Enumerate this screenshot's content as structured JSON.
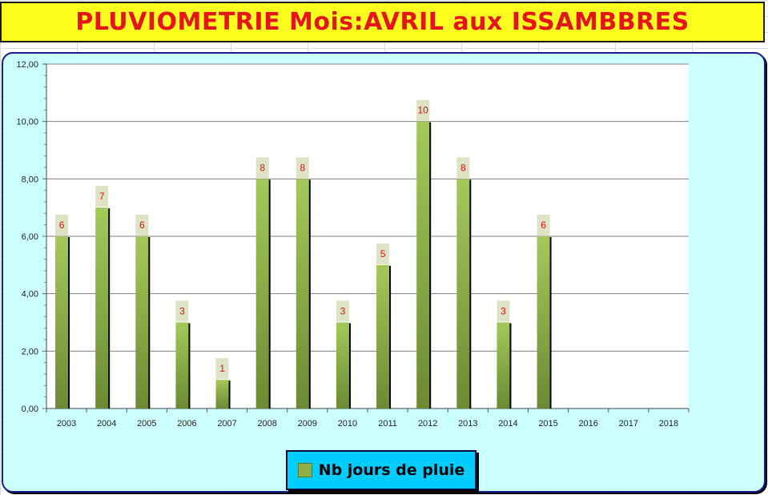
{
  "title": "PLUVIOMETRIE Mois:AVRIL aux ISSAMBBRES",
  "colors": {
    "title_bg": "#ffff1f",
    "title_text": "#e6151c",
    "chart_bg": "#ccffff",
    "bar": "#8db04a",
    "label_bg": "#dde3c4",
    "label_text": "#e01010",
    "legend_bg": "#00ccff"
  },
  "legend": {
    "label": "Nb jours de pluie",
    "position": "bottom"
  },
  "chart_data": {
    "type": "bar",
    "title": "PLUVIOMETRIE Mois:AVRIL aux ISSAMBBRES",
    "categories": [
      "2003",
      "2004",
      "2005",
      "2006",
      "2007",
      "2008",
      "2009",
      "2010",
      "2011",
      "2012",
      "2013",
      "2014",
      "2015",
      "2016",
      "2017",
      "2018"
    ],
    "series": [
      {
        "name": "Nb jours de pluie",
        "values": [
          6,
          7,
          6,
          3,
          1,
          8,
          8,
          3,
          5,
          10,
          8,
          3,
          6,
          null,
          null,
          null
        ]
      }
    ],
    "ylim": [
      0,
      12
    ],
    "yticks": [
      "0,00",
      "2,00",
      "4,00",
      "6,00",
      "8,00",
      "10,00",
      "12,00"
    ],
    "grid": true,
    "legend": "bottom"
  }
}
